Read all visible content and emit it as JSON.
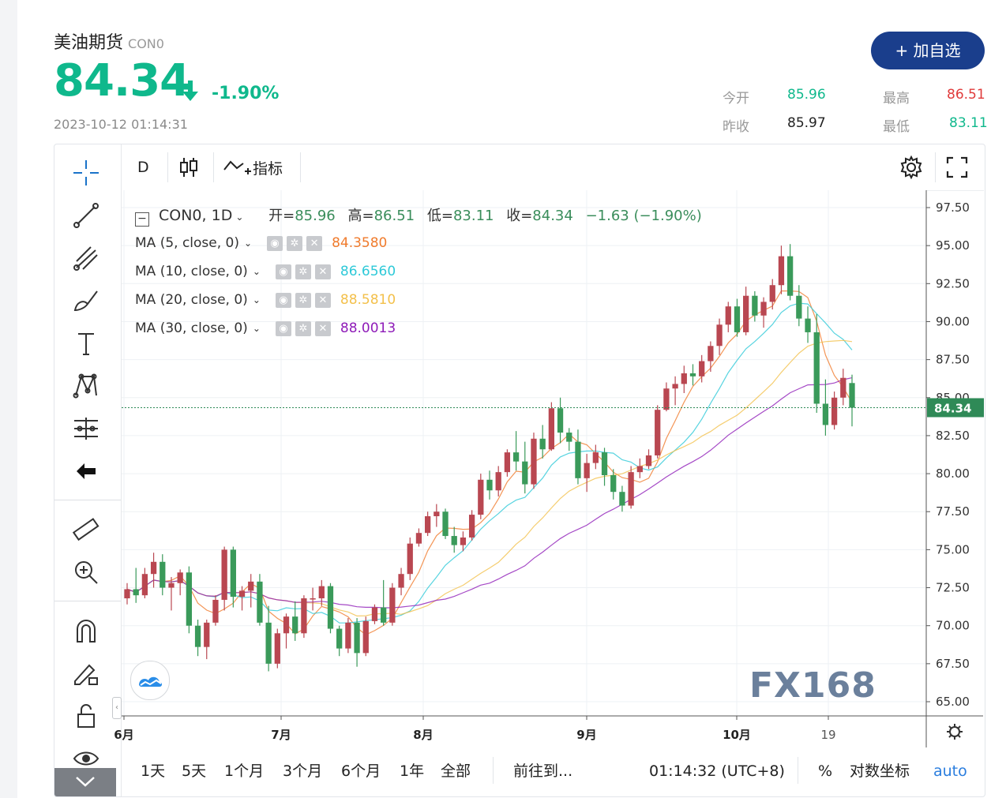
{
  "header": {
    "title": "美油期货",
    "code": "CON0",
    "price": "84.34",
    "change_pct": "-1.90%",
    "timestamp": "2023-10-12 01:14:31",
    "add_button": "+ 加自选",
    "stats": [
      {
        "label": "今开",
        "value": "85.96",
        "color": "#0fb88c"
      },
      {
        "label": "最高",
        "value": "86.51",
        "color": "#e03b3b"
      },
      {
        "label": "昨收",
        "value": "85.97",
        "color": "#222222"
      },
      {
        "label": "最低",
        "value": "83.11",
        "color": "#0fb88c"
      }
    ]
  },
  "toolbar": {
    "interval": "D",
    "indicators_label": "指标"
  },
  "legend": {
    "symbol": "CON0, 1D",
    "open_label": "开=",
    "open": "85.96",
    "high_label": "高=",
    "high": "86.51",
    "low_label": "低=",
    "low": "83.11",
    "close_label": "收=",
    "close": "84.34",
    "change": "−1.63 (−1.90%)"
  },
  "moving_averages": [
    {
      "label": "MA (5, close, 0)",
      "value": "84.3580",
      "color": "#f07b2c"
    },
    {
      "label": "MA (10, close, 0)",
      "value": "86.6560",
      "color": "#2ec9d8"
    },
    {
      "label": "MA (20, close, 0)",
      "value": "88.5810",
      "color": "#f3c04b"
    },
    {
      "label": "MA (30, close, 0)",
      "value": "88.0013",
      "color": "#8e1bb8"
    }
  ],
  "price_axis": [
    "97.50",
    "95.00",
    "92.50",
    "90.00",
    "87.50",
    "85.00",
    "82.50",
    "80.00",
    "77.50",
    "75.00",
    "72.50",
    "70.00",
    "67.50",
    "65.00"
  ],
  "current_price_label": "84.34",
  "time_axis": [
    "6月",
    "7月",
    "8月",
    "9月",
    "10月",
    "19"
  ],
  "watermark": "FX168",
  "bottom": {
    "ranges": [
      "1天",
      "5天",
      "1个月",
      "3个月",
      "6个月",
      "1年",
      "全部"
    ],
    "goto": "前往到...",
    "clock": "01:14:32 (UTC+8)",
    "percent": "%",
    "log": "对数坐标",
    "auto": "auto"
  },
  "chart_data": {
    "type": "candlestick",
    "ylim": [
      64,
      98.5
    ],
    "up_color": "#b94751",
    "down_color": "#3a9a5a",
    "ohlc": [
      [
        71.8,
        72.8,
        71.4,
        72.4
      ],
      [
        72.4,
        73.8,
        71.5,
        72.0
      ],
      [
        72.0,
        73.8,
        71.8,
        73.4
      ],
      [
        73.4,
        74.8,
        72.5,
        74.2
      ],
      [
        74.2,
        74.7,
        72.0,
        72.5
      ],
      [
        72.5,
        73.2,
        71.0,
        72.8
      ],
      [
        72.8,
        73.7,
        72.0,
        73.5
      ],
      [
        73.5,
        73.9,
        69.5,
        70.0
      ],
      [
        70.0,
        70.4,
        68.0,
        68.6
      ],
      [
        68.6,
        70.4,
        67.8,
        70.2
      ],
      [
        70.2,
        72.0,
        70.0,
        71.7
      ],
      [
        71.7,
        75.2,
        71.0,
        75.0
      ],
      [
        75.0,
        75.2,
        71.2,
        71.9
      ],
      [
        71.9,
        72.6,
        71.0,
        72.3
      ],
      [
        72.3,
        73.4,
        71.2,
        72.9
      ],
      [
        72.9,
        73.4,
        70.0,
        70.2
      ],
      [
        70.2,
        71.3,
        67.0,
        67.5
      ],
      [
        67.5,
        69.8,
        67.2,
        69.5
      ],
      [
        69.5,
        70.8,
        68.5,
        70.6
      ],
      [
        70.6,
        71.6,
        69.0,
        69.5
      ],
      [
        69.5,
        72.0,
        69.2,
        71.8
      ],
      [
        71.8,
        72.5,
        71.0,
        71.8
      ],
      [
        71.8,
        73.0,
        71.3,
        72.6
      ],
      [
        72.6,
        72.8,
        69.5,
        69.8
      ],
      [
        69.8,
        70.0,
        68.0,
        68.5
      ],
      [
        68.5,
        70.5,
        68.2,
        70.2
      ],
      [
        70.2,
        70.5,
        67.3,
        68.2
      ],
      [
        68.2,
        70.6,
        68.0,
        70.3
      ],
      [
        70.3,
        71.4,
        70.1,
        71.2
      ],
      [
        71.2,
        73.0,
        70.0,
        70.2
      ],
      [
        70.2,
        72.8,
        70.0,
        72.5
      ],
      [
        72.5,
        73.8,
        72.0,
        73.4
      ],
      [
        73.4,
        75.8,
        73.0,
        75.4
      ],
      [
        75.4,
        76.4,
        75.2,
        76.1
      ],
      [
        76.1,
        77.5,
        75.9,
        77.2
      ],
      [
        77.2,
        78.0,
        76.5,
        77.5
      ],
      [
        77.5,
        77.7,
        75.7,
        75.9
      ],
      [
        75.9,
        76.5,
        74.8,
        75.3
      ],
      [
        75.3,
        76.2,
        74.9,
        75.8
      ],
      [
        75.8,
        77.6,
        75.6,
        77.3
      ],
      [
        77.3,
        80.0,
        77.0,
        79.6
      ],
      [
        79.6,
        80.2,
        78.3,
        78.9
      ],
      [
        78.9,
        80.5,
        78.5,
        80.1
      ],
      [
        80.1,
        81.6,
        79.8,
        81.4
      ],
      [
        81.4,
        82.8,
        80.2,
        80.8
      ],
      [
        80.8,
        82.1,
        78.7,
        79.3
      ],
      [
        79.3,
        82.7,
        79.0,
        82.3
      ],
      [
        82.3,
        83.2,
        81.0,
        81.6
      ],
      [
        81.6,
        84.7,
        81.5,
        84.3
      ],
      [
        84.3,
        85.0,
        82.0,
        82.7
      ],
      [
        82.7,
        83.0,
        81.5,
        82.1
      ],
      [
        82.1,
        82.9,
        79.3,
        79.7
      ],
      [
        79.7,
        81.3,
        78.8,
        80.7
      ],
      [
        80.7,
        81.9,
        80.3,
        81.4
      ],
      [
        81.4,
        81.7,
        79.2,
        79.9
      ],
      [
        79.9,
        80.3,
        78.3,
        78.8
      ],
      [
        78.8,
        79.2,
        77.5,
        77.9
      ],
      [
        77.9,
        80.5,
        77.7,
        80.1
      ],
      [
        80.1,
        81.0,
        79.7,
        80.5
      ],
      [
        80.5,
        81.6,
        80.3,
        81.2
      ],
      [
        81.2,
        84.5,
        81.0,
        84.2
      ],
      [
        84.2,
        86.0,
        84.1,
        85.6
      ],
      [
        85.6,
        86.4,
        84.5,
        85.9
      ],
      [
        85.9,
        87.1,
        85.3,
        86.6
      ],
      [
        86.6,
        87.2,
        85.8,
        86.4
      ],
      [
        86.4,
        87.8,
        86.0,
        87.4
      ],
      [
        87.4,
        88.7,
        86.7,
        88.4
      ],
      [
        88.4,
        90.2,
        87.8,
        89.8
      ],
      [
        89.8,
        91.3,
        89.3,
        91.0
      ],
      [
        91.0,
        91.5,
        89.0,
        89.3
      ],
      [
        89.3,
        92.3,
        89.1,
        91.7
      ],
      [
        91.7,
        92.0,
        90.0,
        90.4
      ],
      [
        90.4,
        91.6,
        89.6,
        91.3
      ],
      [
        91.3,
        92.8,
        90.8,
        92.4
      ],
      [
        92.4,
        95.0,
        91.8,
        94.3
      ],
      [
        94.3,
        95.1,
        91.4,
        91.7
      ],
      [
        91.7,
        92.4,
        89.7,
        90.2
      ],
      [
        90.2,
        91.0,
        88.6,
        89.3
      ],
      [
        89.3,
        90.5,
        84.0,
        84.6
      ],
      [
        84.6,
        86.2,
        82.5,
        83.2
      ],
      [
        83.2,
        85.4,
        82.9,
        85.0
      ],
      [
        85.0,
        86.9,
        84.5,
        86.3
      ],
      [
        85.96,
        86.51,
        83.11,
        84.34
      ]
    ]
  }
}
